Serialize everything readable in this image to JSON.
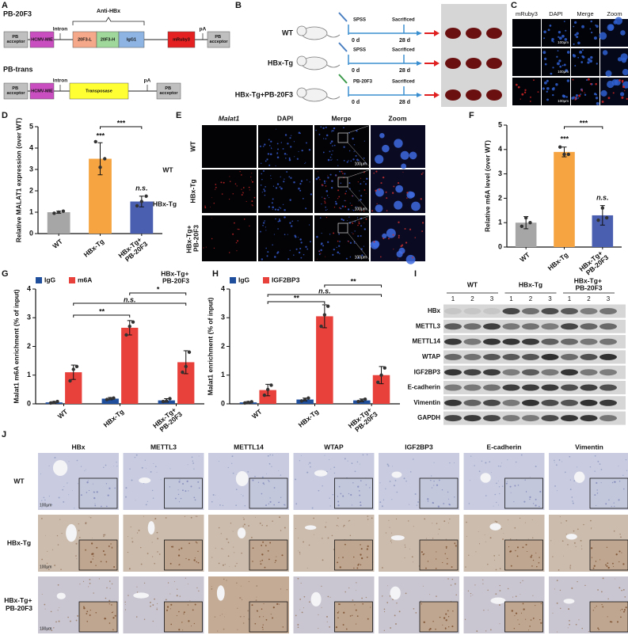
{
  "panel_a": {
    "letter": "A",
    "construct1": {
      "name": "PB-20F3",
      "bracket": "Anti-HBx",
      "parts": [
        "PB acceptor",
        "HCMV-MIE",
        "Intron",
        "20F3-L",
        "20F3-H",
        "IgG1",
        "mRuby3",
        "pA",
        "PB acceptor"
      ]
    },
    "construct2": {
      "name": "PB-trans",
      "parts": [
        "PB acceptor",
        "HCMV-MIE",
        "Intron",
        "Transposase",
        "pA",
        "PB acceptor"
      ]
    }
  },
  "panel_b": {
    "letter": "B",
    "groups": [
      {
        "name": "WT",
        "treatment": "SPSS"
      },
      {
        "name": "HBx-Tg",
        "treatment": "SPSS"
      },
      {
        "name": "HBx-Tg+PB-20F3",
        "treatment": "PB-20F3"
      }
    ],
    "start": "0 d",
    "end": "28 d",
    "endpoint": "Sacrificed"
  },
  "panel_c": {
    "letter": "C",
    "columns": [
      "mRuby3",
      "DAPI",
      "Merge",
      "Zoom"
    ],
    "scale_bar": "100μm"
  },
  "panel_d": {
    "letter": "D",
    "type": "bar",
    "ylabel": "Relative MALAT1 expression (over WT)",
    "categories": [
      "WT",
      "HBx-Tg",
      "HBx-Tg+ PB-20F3"
    ],
    "values": [
      1,
      3.5,
      1.5
    ],
    "errors": [
      0.05,
      0.75,
      0.25
    ],
    "points": [
      [
        0.95,
        1.0,
        1.05
      ],
      [
        4.3,
        3.1,
        3.5
      ],
      [
        1.3,
        1.5,
        1.75
      ]
    ],
    "colors": [
      "#a6a6a6",
      "#f5a441",
      "#4a5fb0"
    ],
    "ylim": [
      0,
      5
    ],
    "yticks": [
      0,
      1,
      2,
      3,
      4,
      5
    ],
    "annotations": [
      "***",
      "n.s.",
      "***"
    ]
  },
  "panel_e": {
    "letter": "E",
    "columns": [
      "Malat1",
      "DAPI",
      "Merge",
      "Zoom"
    ],
    "rows": [
      "WT",
      "HBx-Tg",
      "HBx-Tg+ PB-20F3"
    ],
    "scale_bar": "100μm",
    "side_labels": [
      "WT",
      "HBx-Tg"
    ]
  },
  "panel_f": {
    "letter": "F",
    "type": "bar",
    "ylabel": "Relative m6A level (over WT)",
    "categories": [
      "WT",
      "HBx-Tg",
      "HBx-Tg+ PB-20F3"
    ],
    "values": [
      1,
      3.9,
      1.3
    ],
    "errors": [
      0.25,
      0.2,
      0.4
    ],
    "points": [
      [
        0.85,
        1.2,
        1.0
      ],
      [
        4.1,
        3.8,
        3.8
      ],
      [
        1.1,
        1.6,
        1.2
      ]
    ],
    "colors": [
      "#a6a6a6",
      "#f5a441",
      "#4a5fb0"
    ],
    "ylim": [
      0,
      5
    ],
    "yticks": [
      0,
      1,
      2,
      3,
      4,
      5
    ],
    "annotations": [
      "***",
      "n.s.",
      "***"
    ]
  },
  "panel_g": {
    "letter": "G",
    "type": "bar",
    "ylabel": "Malat1 m6A enrichment (% of input)",
    "categories": [
      "WT",
      "HBx-Tg",
      "HBx-Tg+ PB-20F3"
    ],
    "series": [
      {
        "name": "IgG",
        "color": "#1f4e9c",
        "values": [
          0.05,
          0.18,
          0.12
        ],
        "errors": [
          0.03,
          0.04,
          0.06
        ],
        "points": [
          [
            0.03,
            0.05,
            0.08
          ],
          [
            0.15,
            0.18,
            0.2
          ],
          [
            0.08,
            0.1,
            0.18
          ]
        ]
      },
      {
        "name": "m6A",
        "color": "#e8413c",
        "values": [
          1.1,
          2.65,
          1.45
        ],
        "errors": [
          0.25,
          0.25,
          0.4
        ],
        "points": [
          [
            0.8,
            1.2,
            1.3
          ],
          [
            2.4,
            2.7,
            2.85
          ],
          [
            1.1,
            1.3,
            1.8
          ]
        ]
      }
    ],
    "ylim": [
      0,
      4
    ],
    "yticks": [
      0,
      1,
      2,
      3,
      4
    ],
    "annotations": [
      "**",
      "n.s.",
      "*"
    ],
    "note": "HBx-Tg+ PB-20F3"
  },
  "panel_h": {
    "letter": "H",
    "type": "bar",
    "ylabel": "Malat1 enrichment (% of input)",
    "categories": [
      "WT",
      "HBx-Tg",
      "HBx-Tg+ PB-20F3"
    ],
    "series": [
      {
        "name": "IgG",
        "color": "#1f4e9c",
        "values": [
          0.05,
          0.15,
          0.12
        ],
        "errors": [
          0.03,
          0.05,
          0.05
        ],
        "points": [
          [
            0.03,
            0.05,
            0.07
          ],
          [
            0.1,
            0.15,
            0.2
          ],
          [
            0.08,
            0.12,
            0.16
          ]
        ]
      },
      {
        "name": "IGF2BP3",
        "color": "#e8413c",
        "values": [
          0.48,
          3.05,
          1.0
        ],
        "errors": [
          0.2,
          0.4,
          0.3
        ],
        "points": [
          [
            0.3,
            0.5,
            0.65
          ],
          [
            2.7,
            3.1,
            3.4
          ],
          [
            0.75,
            1.0,
            1.25
          ]
        ]
      }
    ],
    "ylim": [
      0,
      4
    ],
    "yticks": [
      0,
      1,
      2,
      3,
      4
    ],
    "annotations": [
      "**",
      "n.s.",
      "**"
    ]
  },
  "panel_i": {
    "letter": "I",
    "groups": [
      "WT",
      "HBx-Tg",
      "HBx-Tg+ PB-20F3"
    ],
    "lanes": [
      "1",
      "2",
      "3"
    ],
    "proteins": [
      "HBx",
      "METTL3",
      "METTL14",
      "WTAP",
      "IGF2BP3",
      "E-cadherin",
      "Vimentin",
      "GAPDH"
    ]
  },
  "panel_j": {
    "letter": "J",
    "columns": [
      "HBx",
      "METTL3",
      "METTL14",
      "WTAP",
      "IGF2BP3",
      "E-cadherin",
      "Vimentin"
    ],
    "rows": [
      "WT",
      "HBx-Tg",
      "HBx-Tg+ PB-20F3"
    ],
    "scale_bar": "100μm"
  }
}
